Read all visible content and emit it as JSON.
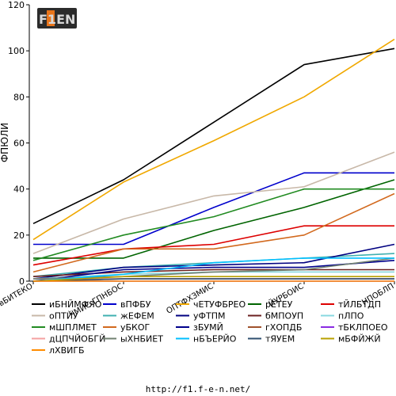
{
  "site_url": "http://f1.f-e-n.net/",
  "logo_text": "F1EN",
  "chart_data": {
    "type": "line",
    "title": "",
    "xlabel": "",
    "ylabel": "ФПЮЛИ",
    "ylim": [
      0,
      120
    ],
    "yticks": [
      0,
      20,
      40,
      60,
      80,
      100,
      120
    ],
    "grid": false,
    "legend_position": "bottom",
    "categories": [
      "вБИТЕКО",
      "ЧМИС-ГПНБОС",
      "ОПТФХЗМИС",
      "ЙУРБОИС",
      "НПОБЛП"
    ],
    "series": [
      {
        "name": "иБНЙМФЯО",
        "color": "#000000",
        "values": [
          25,
          44,
          69,
          94,
          101
        ]
      },
      {
        "name": "вПФБУ",
        "color": "#0000cc",
        "values": [
          16,
          16,
          32,
          47,
          47
        ]
      },
      {
        "name": "чЕТУФБРЕО",
        "color": "#f0a800",
        "values": [
          18,
          43,
          61,
          80,
          105
        ]
      },
      {
        "name": "рЕТЕУ",
        "color": "#006400",
        "values": [
          10,
          10,
          22,
          32,
          44
        ]
      },
      {
        "name": "тЙЛБТДП",
        "color": "#dd0000",
        "values": [
          7,
          14,
          16,
          24,
          24
        ]
      },
      {
        "name": "оПТЙУ",
        "color": "#c8b8a8",
        "values": [
          12,
          27,
          37,
          41,
          56
        ]
      },
      {
        "name": "жЕФЕМ",
        "color": "#40b0b0",
        "values": [
          2,
          6,
          8,
          10,
          12
        ]
      },
      {
        "name": "уФТПМ",
        "color": "#000080",
        "values": [
          1,
          6,
          7,
          8,
          16
        ]
      },
      {
        "name": "бМПОУП",
        "color": "#6b2020",
        "values": [
          2,
          4,
          5,
          5,
          5
        ]
      },
      {
        "name": "пЛПО",
        "color": "#88d8e0",
        "values": [
          1,
          3,
          4,
          4,
          4
        ]
      },
      {
        "name": "мШПЛМЕТ",
        "color": "#228b22",
        "values": [
          9,
          20,
          28,
          40,
          40
        ]
      },
      {
        "name": "уБКОГ",
        "color": "#d2691e",
        "values": [
          4,
          14,
          14,
          20,
          38
        ]
      },
      {
        "name": "зБУМЙ",
        "color": "#00008b",
        "values": [
          0,
          5,
          6,
          6,
          9
        ]
      },
      {
        "name": "гХОПДБ",
        "color": "#a0522d",
        "values": [
          0,
          1,
          1,
          1,
          1
        ]
      },
      {
        "name": "тБКЛПОЕО",
        "color": "#8a2be2",
        "values": [
          0,
          0,
          0,
          0,
          0
        ]
      },
      {
        "name": "дЦПЧЙОБГЙ",
        "color": "#f4a0a0",
        "values": [
          1,
          1,
          1,
          1,
          1
        ]
      },
      {
        "name": "ыХНБИЕТ",
        "color": "#708070",
        "values": [
          1,
          2,
          4,
          5,
          10
        ]
      },
      {
        "name": "нБЪЕРЙО",
        "color": "#00bfff",
        "values": [
          0,
          3,
          8,
          10,
          10
        ]
      },
      {
        "name": "тЯУЕМ",
        "color": "#2f4f6f",
        "values": [
          0,
          1,
          1,
          1,
          1
        ]
      },
      {
        "name": "мБФЙЖЙ",
        "color": "#b8a000",
        "values": [
          0,
          2,
          2,
          2,
          2
        ]
      },
      {
        "name": "лХВИГБ",
        "color": "#ff8c00",
        "values": [
          0,
          0,
          0,
          0,
          0
        ]
      }
    ]
  }
}
